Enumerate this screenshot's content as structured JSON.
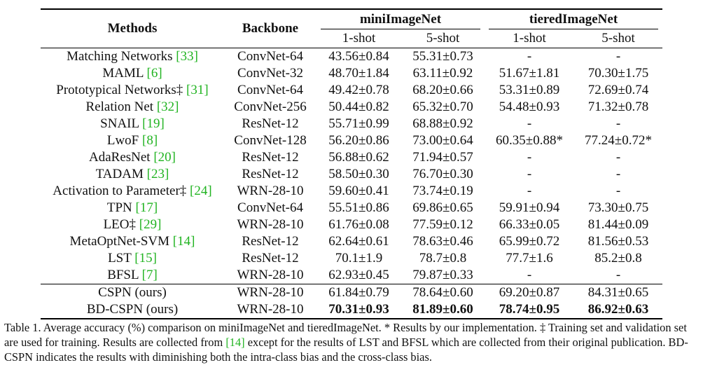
{
  "header": {
    "methods": "Methods",
    "backbone": "Backbone",
    "dataset1": "miniImageNet",
    "dataset2": "tieredImageNet",
    "shot1": "1-shot",
    "shot5": "5-shot"
  },
  "rows": [
    {
      "method": "Matching Networks ",
      "ref": "[33]",
      "mark": "",
      "backbone": "ConvNet-64",
      "m1": "43.56±0.84",
      "m5": "55.31±0.73",
      "t1": "-",
      "t5": "-"
    },
    {
      "method": "MAML ",
      "ref": "[6]",
      "mark": "",
      "backbone": "ConvNet-32",
      "m1": "48.70±1.84",
      "m5": "63.11±0.92",
      "t1": "51.67±1.81",
      "t5": "70.30±1.75"
    },
    {
      "method": "Prototypical Networks‡ ",
      "ref": "[31]",
      "mark": "",
      "backbone": "ConvNet-64",
      "m1": "49.42±0.78",
      "m5": "68.20±0.66",
      "t1": "53.31±0.89",
      "t5": "72.69±0.74"
    },
    {
      "method": "Relation Net ",
      "ref": "[32]",
      "mark": "",
      "backbone": "ConvNet-256",
      "m1": "50.44±0.82",
      "m5": "65.32±0.70",
      "t1": "54.48±0.93",
      "t5": "71.32±0.78"
    },
    {
      "method": "SNAIL ",
      "ref": "[19]",
      "mark": "",
      "backbone": "ResNet-12",
      "m1": "55.71±0.99",
      "m5": "68.88±0.92",
      "t1": "-",
      "t5": "-"
    },
    {
      "method": "LwoF ",
      "ref": "[8]",
      "mark": "",
      "backbone": "ConvNet-128",
      "m1": "56.20±0.86",
      "m5": "73.00±0.64",
      "t1": "60.35±0.88*",
      "t5": "77.24±0.72*"
    },
    {
      "method": "AdaResNet ",
      "ref": "[20]",
      "mark": "",
      "backbone": "ResNet-12",
      "m1": "56.88±0.62",
      "m5": "71.94±0.57",
      "t1": "-",
      "t5": "-"
    },
    {
      "method": "TADAM ",
      "ref": "[23]",
      "mark": "",
      "backbone": "ResNet-12",
      "m1": "58.50±0.30",
      "m5": "76.70±0.30",
      "t1": "-",
      "t5": "-"
    },
    {
      "method": "Activation to Parameter‡ ",
      "ref": "[24]",
      "mark": "",
      "backbone": "WRN-28-10",
      "m1": "59.60±0.41",
      "m5": "73.74±0.19",
      "t1": "-",
      "t5": "-"
    },
    {
      "method": "TPN ",
      "ref": "[17]",
      "mark": "",
      "backbone": "ConvNet-64",
      "m1": "55.51±0.86",
      "m5": "69.86±0.65",
      "t1": "59.91±0.94",
      "t5": "73.30±0.75"
    },
    {
      "method": "LEO‡ ",
      "ref": "[29]",
      "mark": "",
      "backbone": "WRN-28-10",
      "m1": "61.76±0.08",
      "m5": "77.59±0.12",
      "t1": "66.33±0.05",
      "t5": "81.44±0.09"
    },
    {
      "method": "MetaOptNet-SVM ",
      "ref": "[14]",
      "mark": "",
      "backbone": "ResNet-12",
      "m1": "62.64±0.61",
      "m5": "78.63±0.46",
      "t1": "65.99±0.72",
      "t5": "81.56±0.53"
    },
    {
      "method": "LST ",
      "ref": "[15]",
      "mark": "",
      "backbone": "ResNet-12",
      "m1": "70.1±1.9",
      "m5": "78.7±0.8",
      "t1": "77.7±1.6",
      "t5": "85.2±0.8"
    },
    {
      "method": "BFSL ",
      "ref": "[7]",
      "mark": "",
      "backbone": "WRN-28-10",
      "m1": "62.93±0.45",
      "m5": "79.87±0.33",
      "t1": "-",
      "t5": "-"
    }
  ],
  "ours": [
    {
      "method": "CSPN (ours)",
      "backbone": "WRN-28-10",
      "m1": "61.84±0.79",
      "m5": "78.64±0.60",
      "t1": "69.20±0.87",
      "t5": "84.31±0.65"
    },
    {
      "method": "BD-CSPN (ours)",
      "backbone": "WRN-28-10",
      "m1": "70.31±0.93",
      "m5": "81.89±0.60",
      "t1": "78.74±0.95",
      "t5": "86.92±0.63"
    }
  ],
  "caption": {
    "part1": "Table 1. Average accuracy (%) comparison on miniImageNet and tieredImageNet. * Results by our implementation. ‡ Training set and validation set are used for training. Results are collected from ",
    "ref": "[14]",
    "part2": " except for the results of LST and BFSL which are collected from their original publication. BD-CSPN indicates the results with diminishing both the intra-class bias and the cross-class bias."
  }
}
